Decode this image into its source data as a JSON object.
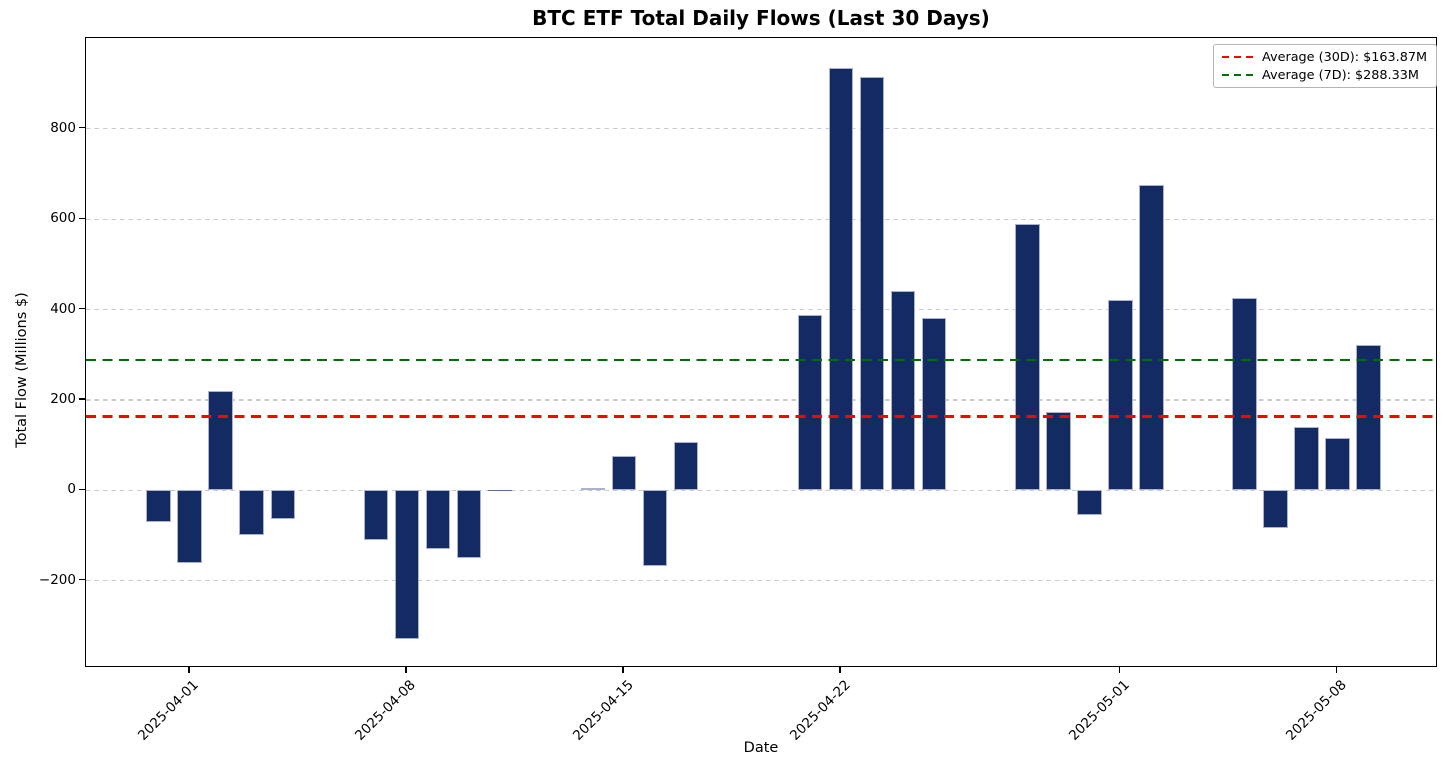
{
  "figure": {
    "title": "BTC ETF Total Daily Flows (Last 30 Days)"
  },
  "chart_data": {
    "type": "bar",
    "title": "BTC ETF Total Daily Flows (Last 30 Days)",
    "xlabel": "Date",
    "ylabel": "Total Flow (Millions $)",
    "dates": [
      "2025-03-31",
      "2025-04-01",
      "2025-04-02",
      "2025-04-03",
      "2025-04-04",
      "2025-04-07",
      "2025-04-08",
      "2025-04-09",
      "2025-04-10",
      "2025-04-11",
      "2025-04-14",
      "2025-04-15",
      "2025-04-16",
      "2025-04-17",
      "2025-04-18",
      "2025-04-21",
      "2025-04-22",
      "2025-04-23",
      "2025-04-24",
      "2025-04-25",
      "2025-04-28",
      "2025-04-29",
      "2025-04-30",
      "2025-05-01",
      "2025-05-02",
      "2025-05-05",
      "2025-05-06",
      "2025-05-07",
      "2025-05-08",
      "2025-05-09"
    ],
    "values": [
      -70,
      -160,
      220,
      -99,
      -63,
      -109,
      -328,
      -129,
      -149,
      1,
      5,
      75,
      -168,
      106,
      0,
      387,
      934,
      915,
      442,
      381,
      590,
      173,
      -55,
      422,
      675,
      426,
      -84,
      141,
      117,
      321
    ],
    "units": "Millions $",
    "yticks": [
      -200,
      0,
      200,
      400,
      600,
      800
    ],
    "xtick_dates": [
      "2025-04-01",
      "2025-04-08",
      "2025-04-15",
      "2025-04-22",
      "2025-05-01",
      "2025-05-08"
    ],
    "ylim": [
      -393,
      1001
    ],
    "xlim_day_offsets": [
      -2.35,
      41.25
    ],
    "base_date": "2025-03-31",
    "bar_width_days": 0.8,
    "grid": "horizontal-dashed",
    "legend": {
      "position": "upper-right",
      "entries": [
        {
          "label": "Average (30D): $163.87M",
          "value": 163.87,
          "color": "#ff0000",
          "style": "dashed"
        },
        {
          "label": "Average (7D): $288.33M",
          "value": 288.33,
          "color": "#007000",
          "style": "dashed"
        }
      ]
    },
    "colors": {
      "bar_fill": "#132b62",
      "bar_edge": "#aab2cf",
      "grid": "#cbcbcb",
      "axis": "#000000",
      "background": "#ffffff"
    }
  }
}
